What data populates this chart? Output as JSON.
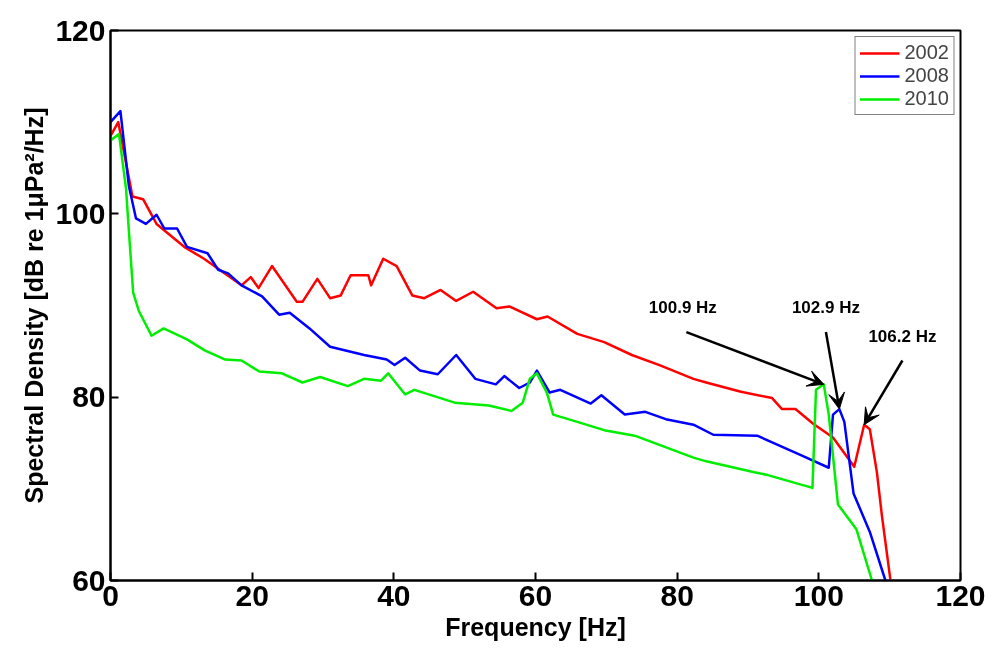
{
  "chart_data": {
    "type": "line",
    "xlabel": "Frequency [Hz]",
    "ylabel": "Spectral Density [dB re 1μPa²/Hz]",
    "xlim": [
      0,
      120
    ],
    "ylim": [
      60,
      120
    ],
    "xticks": [
      0,
      20,
      40,
      60,
      80,
      100,
      120
    ],
    "yticks": [
      60,
      80,
      100,
      120
    ],
    "grid": false,
    "legend": "top right",
    "line_style": "solid",
    "marker": "none",
    "series": [
      {
        "name": "2002",
        "color": "#ff0000",
        "x": [
          0,
          1.1,
          3.1,
          4.6,
          6.5,
          10.4,
          13.2,
          18.5,
          19.8,
          20.9,
          22.8,
          26.3,
          27.1,
          29.2,
          31,
          32.5,
          33.9,
          36.4,
          36.8,
          38.5,
          40.4,
          42.6,
          44.3,
          46.6,
          48.8,
          51.2,
          54.5,
          56.3,
          60.2,
          61.7,
          65.9,
          69.7,
          73.6,
          77.5,
          82.3,
          84.1,
          89,
          93.4,
          94.8,
          96.7,
          99.2,
          102,
          105,
          106.4,
          107.2,
          108.2,
          108.9,
          110.1
        ],
        "values": [
          108.5,
          110,
          101.9,
          101.6,
          98.9,
          96.4,
          95.1,
          92.2,
          93.1,
          91.9,
          94.3,
          90.4,
          90.4,
          92.9,
          90.8,
          91.1,
          93.3,
          93.3,
          92.2,
          95.1,
          94.3,
          91.1,
          90.8,
          91.7,
          90.5,
          91.5,
          89.7,
          89.9,
          88.5,
          88.8,
          86.9,
          86,
          84.6,
          83.5,
          82,
          81.6,
          80.6,
          79.9,
          78.7,
          78.7,
          77.1,
          75.6,
          72.4,
          77,
          76.5,
          71.8,
          67.1,
          60.1
        ]
      },
      {
        "name": "2008",
        "color": "#0000ff",
        "x": [
          0,
          1.4,
          2.6,
          3.6,
          5,
          6.5,
          7.6,
          9.4,
          10.8,
          13.7,
          15.2,
          16.6,
          18.5,
          21.4,
          23.8,
          25.3,
          28.1,
          31,
          35.8,
          39,
          40.1,
          41.6,
          43.7,
          46.2,
          48.8,
          51.5,
          54.4,
          55.6,
          57.7,
          59.2,
          60.2,
          62,
          63.5,
          67.8,
          69.3,
          72.6,
          75.5,
          78.4,
          82.3,
          85.1,
          91.3,
          97.7,
          101.4,
          102,
          102.9,
          103.6,
          104.9,
          107.2,
          109.4
        ],
        "values": [
          110,
          111.2,
          103,
          99.5,
          98.9,
          99.9,
          98.4,
          98.4,
          96.4,
          95.7,
          93.9,
          93.5,
          92.2,
          91,
          89,
          89.2,
          87.5,
          85.5,
          84.6,
          84.1,
          83.5,
          84.3,
          82.9,
          82.5,
          84.6,
          82,
          81.4,
          82.3,
          81,
          81.6,
          82.9,
          80.5,
          80.8,
          79.3,
          80.2,
          78.1,
          78.4,
          77.6,
          77,
          75.9,
          75.8,
          73.6,
          72.3,
          78.1,
          78.7,
          77.3,
          69.5,
          65.3,
          60
        ]
      },
      {
        "name": "2010",
        "color": "#00ee00",
        "x": [
          0,
          1.2,
          2.2,
          2.5,
          3.2,
          4,
          5.8,
          7.5,
          10.8,
          13.3,
          16.2,
          18.5,
          21,
          24.2,
          27.1,
          29.6,
          33.5,
          35.8,
          38.2,
          39.2,
          41.6,
          42.9,
          48.6,
          53.4,
          56.6,
          58.2,
          59.2,
          60.2,
          61.6,
          62.5,
          65.9,
          69.7,
          74,
          77.5,
          82.3,
          84.1,
          90.9,
          92.8,
          99.1,
          99.6,
          100.7,
          101.4,
          102.7,
          105.3,
          107.5
        ],
        "values": [
          108,
          108.7,
          102.7,
          99.2,
          91.4,
          89.4,
          86.7,
          87.5,
          86.3,
          85.1,
          84.1,
          84,
          82.8,
          82.6,
          81.6,
          82.2,
          81.2,
          82,
          81.8,
          82.6,
          80.3,
          80.8,
          79.4,
          79.1,
          78.5,
          79.4,
          82,
          82.6,
          80.5,
          78.1,
          77.3,
          76.4,
          75.8,
          74.8,
          73.4,
          73,
          71.8,
          71.5,
          70.1,
          80.8,
          81.4,
          78.1,
          68.3,
          65.6,
          60
        ]
      }
    ],
    "annotations": [
      {
        "text": "100.9 Hz",
        "x": 100.7,
        "y": 81.4
      },
      {
        "text": "102.9 Hz",
        "x": 102.9,
        "y": 78.7
      },
      {
        "text": "106.2 Hz",
        "x": 106.4,
        "y": 77
      }
    ]
  }
}
